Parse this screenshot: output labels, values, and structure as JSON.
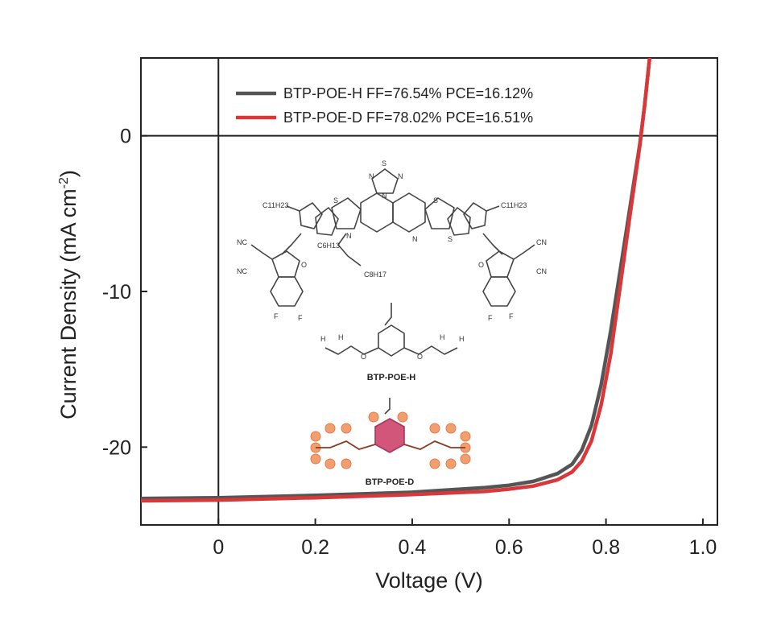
{
  "chart_data": {
    "type": "line",
    "xlabel": "Voltage (V)",
    "ylabel": "Current Density (mA cm",
    "ylabel_sup": "-2",
    "ylabel_close": ")",
    "xlim": [
      -0.16,
      1.03
    ],
    "ylim": [
      -25,
      5
    ],
    "x_ticks": [
      0,
      0.2,
      0.4,
      0.6,
      0.8,
      1.0
    ],
    "x_tick_labels": [
      "0",
      "0.2",
      "0.4",
      "0.6",
      "0.8",
      "1.0"
    ],
    "y_ticks": [
      0,
      -10,
      -20
    ],
    "y_tick_labels": [
      "0",
      "-10",
      "-20"
    ],
    "zero_lines": true,
    "legend_position": "top-center",
    "series": [
      {
        "name": "BTP-POE-H FF=76.54% PCE=16.12%",
        "color": "#555555",
        "x": [
          -0.16,
          0.0,
          0.2,
          0.4,
          0.55,
          0.6,
          0.65,
          0.7,
          0.73,
          0.75,
          0.77,
          0.79,
          0.81,
          0.83,
          0.85,
          0.87,
          0.88,
          0.89
        ],
        "y": [
          -23.3,
          -23.25,
          -23.1,
          -22.9,
          -22.6,
          -22.45,
          -22.2,
          -21.7,
          -21.1,
          -20.2,
          -18.6,
          -16.0,
          -12.5,
          -8.5,
          -4.5,
          -0.5,
          2.0,
          5.0
        ]
      },
      {
        "name": "BTP-POE-D FF=78.02% PCE=16.51%",
        "color": "#d9383a",
        "x": [
          -0.16,
          0.0,
          0.2,
          0.4,
          0.55,
          0.6,
          0.65,
          0.7,
          0.73,
          0.75,
          0.77,
          0.79,
          0.81,
          0.83,
          0.85,
          0.87,
          0.88,
          0.89
        ],
        "y": [
          -23.45,
          -23.4,
          -23.25,
          -23.05,
          -22.85,
          -22.7,
          -22.5,
          -22.1,
          -21.6,
          -20.9,
          -19.6,
          -17.3,
          -14.0,
          -9.5,
          -5.0,
          -0.6,
          2.0,
          5.0
        ]
      }
    ],
    "inset": {
      "labels": [
        "S",
        "N",
        "N",
        "N",
        "S",
        "S",
        "N",
        "N",
        "S",
        "C11H23",
        "C11H23",
        "C6H13",
        "C8H17",
        "NC",
        "NC",
        "CN",
        "CN",
        "O",
        "O",
        "F",
        "F",
        "F",
        "F",
        "H",
        "H",
        "H",
        "H",
        "O",
        "O"
      ],
      "caption_h": "BTP-POE-H",
      "caption_d": "BTP-POE-D"
    }
  }
}
